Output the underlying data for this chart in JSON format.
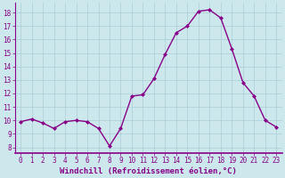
{
  "x": [
    0,
    1,
    2,
    3,
    4,
    5,
    6,
    7,
    8,
    9,
    10,
    11,
    12,
    13,
    14,
    15,
    16,
    17,
    18,
    19,
    20,
    21,
    22,
    23
  ],
  "y": [
    9.9,
    10.1,
    9.8,
    9.4,
    9.9,
    10.0,
    9.9,
    9.4,
    8.1,
    9.4,
    11.8,
    11.9,
    13.1,
    14.9,
    16.5,
    17.0,
    18.1,
    18.2,
    17.6,
    15.3,
    12.8,
    11.8,
    10.0,
    9.5
  ],
  "line_color": "#880088",
  "marker": "D",
  "marker_size": 2.0,
  "linewidth": 1.0,
  "bg_color": "#cce8ec",
  "grid_color": "#aacdd4",
  "xlabel": "Windchill (Refroidissement éolien,°C)",
  "xlabel_fontsize": 6.5,
  "ylabel_ticks": [
    8,
    9,
    10,
    11,
    12,
    13,
    14,
    15,
    16,
    17,
    18
  ],
  "xlim": [
    -0.5,
    23.5
  ],
  "ylim": [
    7.6,
    18.7
  ],
  "tick_fontsize": 5.5,
  "spine_color": "#888888"
}
